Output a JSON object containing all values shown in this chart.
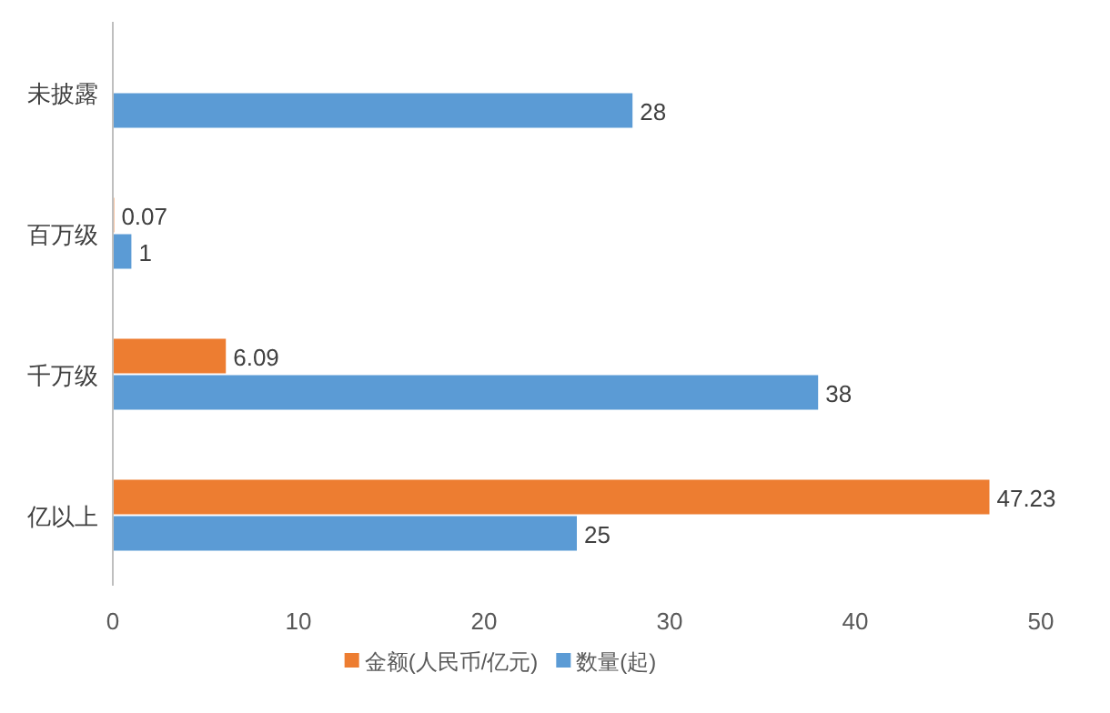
{
  "chart_data": {
    "type": "bar",
    "orientation": "horizontal",
    "categories": [
      "未披露",
      "百万级",
      "千万级",
      "亿以上"
    ],
    "series": [
      {
        "name": "金额(人民币/亿元)",
        "color": "#ed7d31",
        "values": [
          null,
          0.07,
          6.09,
          47.23
        ]
      },
      {
        "name": "数量(起)",
        "color": "#5b9bd5",
        "values": [
          28,
          1,
          38,
          25
        ]
      }
    ],
    "xlim": [
      0,
      50
    ],
    "xticks": [
      0,
      10,
      20,
      30,
      40,
      50
    ],
    "grid": false,
    "legend": "bottom",
    "data_labels": true
  }
}
